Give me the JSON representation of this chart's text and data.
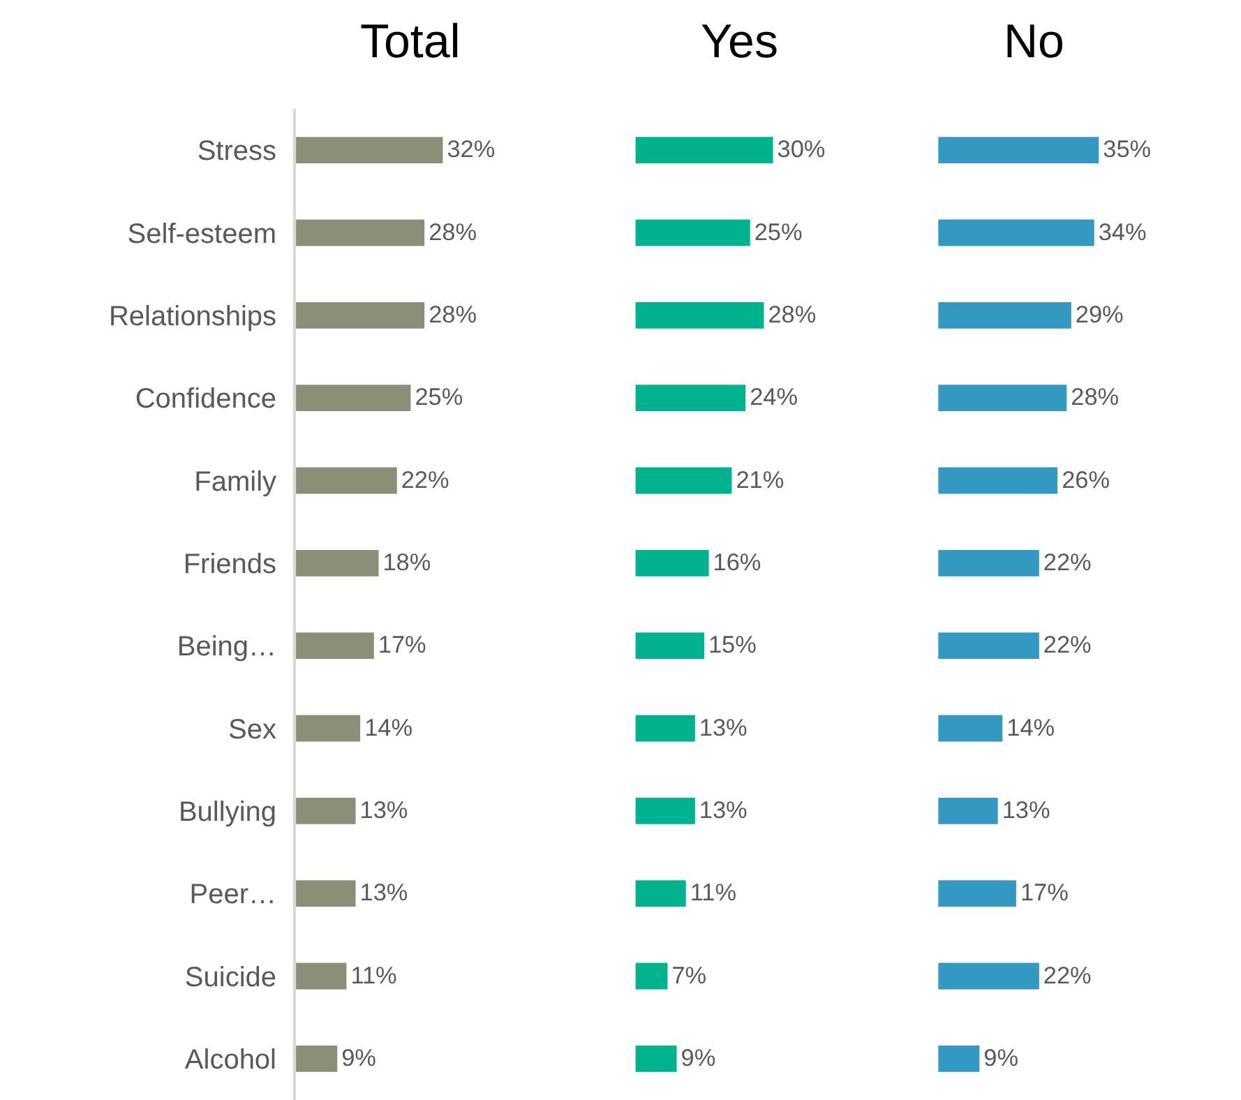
{
  "chart_data": [
    {
      "type": "bar",
      "orientation": "horizontal",
      "title": "Total",
      "categories": [
        "Stress",
        "Self-esteem",
        "Relationships",
        "Confidence",
        "Family",
        "Friends",
        "Being…",
        "Sex",
        "Bullying",
        "Peer…",
        "Suicide",
        "Alcohol"
      ],
      "values": [
        32,
        28,
        28,
        25,
        22,
        18,
        17,
        14,
        13,
        13,
        11,
        9
      ],
      "value_labels": [
        "32%",
        "28%",
        "28%",
        "25%",
        "22%",
        "18%",
        "17%",
        "14%",
        "13%",
        "13%",
        "11%",
        "9%"
      ],
      "color": "#8c8f77",
      "tick_labels": "y"
    },
    {
      "type": "bar",
      "orientation": "horizontal",
      "title": "Yes",
      "categories": [
        "Stress",
        "Self-esteem",
        "Relationships",
        "Confidence",
        "Family",
        "Friends",
        "Being…",
        "Sex",
        "Bullying",
        "Peer…",
        "Suicide",
        "Alcohol"
      ],
      "values": [
        30,
        25,
        28,
        24,
        21,
        16,
        15,
        13,
        13,
        11,
        7,
        9
      ],
      "value_labels": [
        "30%",
        "25%",
        "28%",
        "24%",
        "21%",
        "16%",
        "15%",
        "13%",
        "13%",
        "11%",
        "7%",
        "9%"
      ],
      "color": "#00b38f",
      "tick_labels": false
    },
    {
      "type": "bar",
      "orientation": "horizontal",
      "title": "No",
      "categories": [
        "Stress",
        "Self-esteem",
        "Relationships",
        "Confidence",
        "Family",
        "Friends",
        "Being…",
        "Sex",
        "Bullying",
        "Peer…",
        "Suicide",
        "Alcohol"
      ],
      "values": [
        35,
        34,
        29,
        28,
        26,
        22,
        22,
        14,
        13,
        17,
        22,
        9
      ],
      "value_labels": [
        "35%",
        "34%",
        "29%",
        "28%",
        "26%",
        "22%",
        "22%",
        "14%",
        "13%",
        "17%",
        "22%",
        "9%"
      ],
      "color": "#3399c2",
      "tick_labels": false
    }
  ]
}
